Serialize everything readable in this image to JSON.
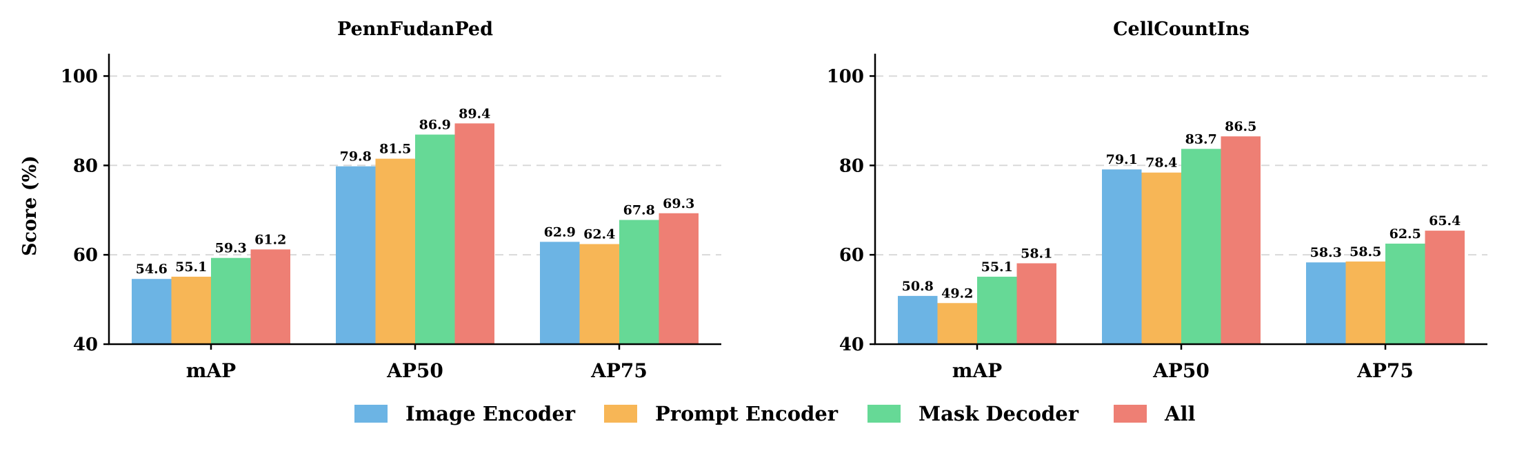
{
  "legend": [
    {
      "name": "Image Encoder",
      "color": "#6cb4e4"
    },
    {
      "name": "Prompt Encoder",
      "color": "#f7b656"
    },
    {
      "name": "Mask Decoder",
      "color": "#66d996"
    },
    {
      "name": "All",
      "color": "#ee7f74"
    }
  ],
  "chart_data": [
    {
      "type": "bar",
      "title": "PennFudanPed",
      "xlabel": "",
      "ylabel": "Score (%)",
      "ylim": [
        40,
        105
      ],
      "yticks": [
        40,
        60,
        80,
        100
      ],
      "grid": true,
      "categories": [
        "mAP",
        "AP50",
        "AP75"
      ],
      "series": [
        {
          "name": "Image Encoder",
          "values": [
            54.6,
            79.8,
            62.9
          ]
        },
        {
          "name": "Prompt Encoder",
          "values": [
            55.1,
            81.5,
            62.4
          ]
        },
        {
          "name": "Mask Decoder",
          "values": [
            59.3,
            86.9,
            67.8
          ]
        },
        {
          "name": "All",
          "values": [
            61.2,
            89.4,
            69.3
          ]
        }
      ]
    },
    {
      "type": "bar",
      "title": "CellCountIns",
      "xlabel": "",
      "ylabel": "",
      "ylim": [
        40,
        105
      ],
      "yticks": [
        40,
        60,
        80,
        100
      ],
      "grid": true,
      "categories": [
        "mAP",
        "AP50",
        "AP75"
      ],
      "series": [
        {
          "name": "Image Encoder",
          "values": [
            50.8,
            79.1,
            58.3
          ]
        },
        {
          "name": "Prompt Encoder",
          "values": [
            49.2,
            78.4,
            58.5
          ]
        },
        {
          "name": "Mask Decoder",
          "values": [
            55.1,
            83.7,
            62.5
          ]
        },
        {
          "name": "All",
          "values": [
            58.1,
            86.5,
            65.4
          ]
        }
      ]
    }
  ]
}
